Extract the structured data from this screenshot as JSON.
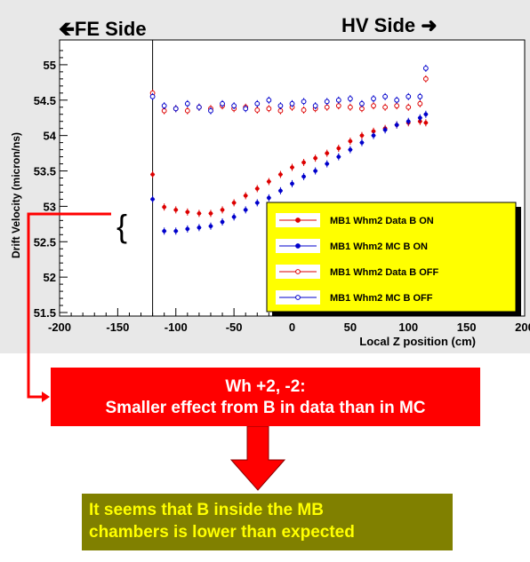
{
  "header": {
    "left_label": "FE Side",
    "right_label": "HV Side"
  },
  "chart_data": {
    "type": "scatter",
    "title": "",
    "xlabel": "Local Z position (cm)",
    "ylabel": "Drift Velocity (micron/ns)",
    "xlim": [
      -200,
      200
    ],
    "ylim": [
      51.45,
      55.35
    ],
    "xticks": [
      "-200",
      "-150",
      "-100",
      "-50",
      "0",
      "50",
      "100",
      "150",
      "200"
    ],
    "yticks": [
      "51.5",
      "52",
      "52.5",
      "53",
      "53.5",
      "54",
      "54.5",
      "55"
    ],
    "grid": false,
    "legend_position": "bottom-right",
    "series": [
      {
        "name": "MB1 Whm2   Data B ON",
        "color": "#dd0000",
        "marker": "filled",
        "x": [
          -120,
          -110,
          -100,
          -90,
          -80,
          -70,
          -60,
          -50,
          -40,
          -30,
          -20,
          -10,
          0,
          10,
          20,
          30,
          40,
          50,
          60,
          70,
          80,
          90,
          100,
          110,
          115
        ],
        "y": [
          53.45,
          52.99,
          52.95,
          52.92,
          52.9,
          52.9,
          52.95,
          53.05,
          53.15,
          53.25,
          53.35,
          53.45,
          53.55,
          53.62,
          53.68,
          53.75,
          53.82,
          53.92,
          54.0,
          54.06,
          54.1,
          54.15,
          54.18,
          54.2,
          54.18
        ]
      },
      {
        "name": "MB1 Whm2   MC B ON",
        "color": "#0000cc",
        "marker": "filled",
        "x": [
          -120,
          -110,
          -100,
          -90,
          -80,
          -70,
          -60,
          -50,
          -40,
          -30,
          -20,
          -10,
          0,
          10,
          20,
          30,
          40,
          50,
          60,
          70,
          80,
          90,
          100,
          110,
          115
        ],
        "y": [
          53.1,
          52.65,
          52.65,
          52.68,
          52.7,
          52.72,
          52.78,
          52.85,
          52.95,
          53.05,
          53.12,
          53.22,
          53.32,
          53.42,
          53.5,
          53.6,
          53.7,
          53.8,
          53.9,
          54.0,
          54.08,
          54.15,
          54.2,
          54.25,
          54.3
        ]
      },
      {
        "name": "MB1 Whm2   Data B OFF",
        "color": "#dd0000",
        "marker": "open",
        "x": [
          -120,
          -110,
          -100,
          -90,
          -80,
          -70,
          -60,
          -50,
          -40,
          -30,
          -20,
          -10,
          0,
          10,
          20,
          30,
          40,
          50,
          60,
          70,
          80,
          90,
          100,
          110,
          115
        ],
        "y": [
          54.6,
          54.35,
          54.38,
          54.35,
          54.4,
          54.38,
          54.42,
          54.38,
          54.4,
          54.36,
          54.38,
          54.35,
          54.4,
          54.36,
          54.38,
          54.4,
          54.42,
          54.4,
          54.38,
          54.42,
          54.4,
          54.42,
          54.4,
          54.45,
          54.8
        ]
      },
      {
        "name": "MB1 Whm2   MC B OFF",
        "color": "#0000cc",
        "marker": "open",
        "x": [
          -120,
          -110,
          -100,
          -90,
          -80,
          -70,
          -60,
          -50,
          -40,
          -30,
          -20,
          -10,
          0,
          10,
          20,
          30,
          40,
          50,
          60,
          70,
          80,
          90,
          100,
          110,
          115
        ],
        "y": [
          54.55,
          54.42,
          54.38,
          54.45,
          54.4,
          54.35,
          54.45,
          54.42,
          54.38,
          54.45,
          54.5,
          54.42,
          54.45,
          54.48,
          54.42,
          54.48,
          54.5,
          54.52,
          54.45,
          54.52,
          54.55,
          54.5,
          54.55,
          54.55,
          54.95
        ]
      }
    ]
  },
  "annotation": {
    "brace": "{"
  },
  "conclusion": {
    "line1": "Wh +2, -2:",
    "line2": "Smaller effect from B in data than in MC"
  },
  "summary": {
    "line1": "It seems that B inside the MB",
    "line2": "chambers is lower than expected"
  },
  "colors": {
    "highlight_box": "#ff0000",
    "summary_box": "#808000",
    "summary_text": "#ffff00",
    "legend_bg": "#ffff00",
    "plot_bg": "#e8e8e8"
  }
}
